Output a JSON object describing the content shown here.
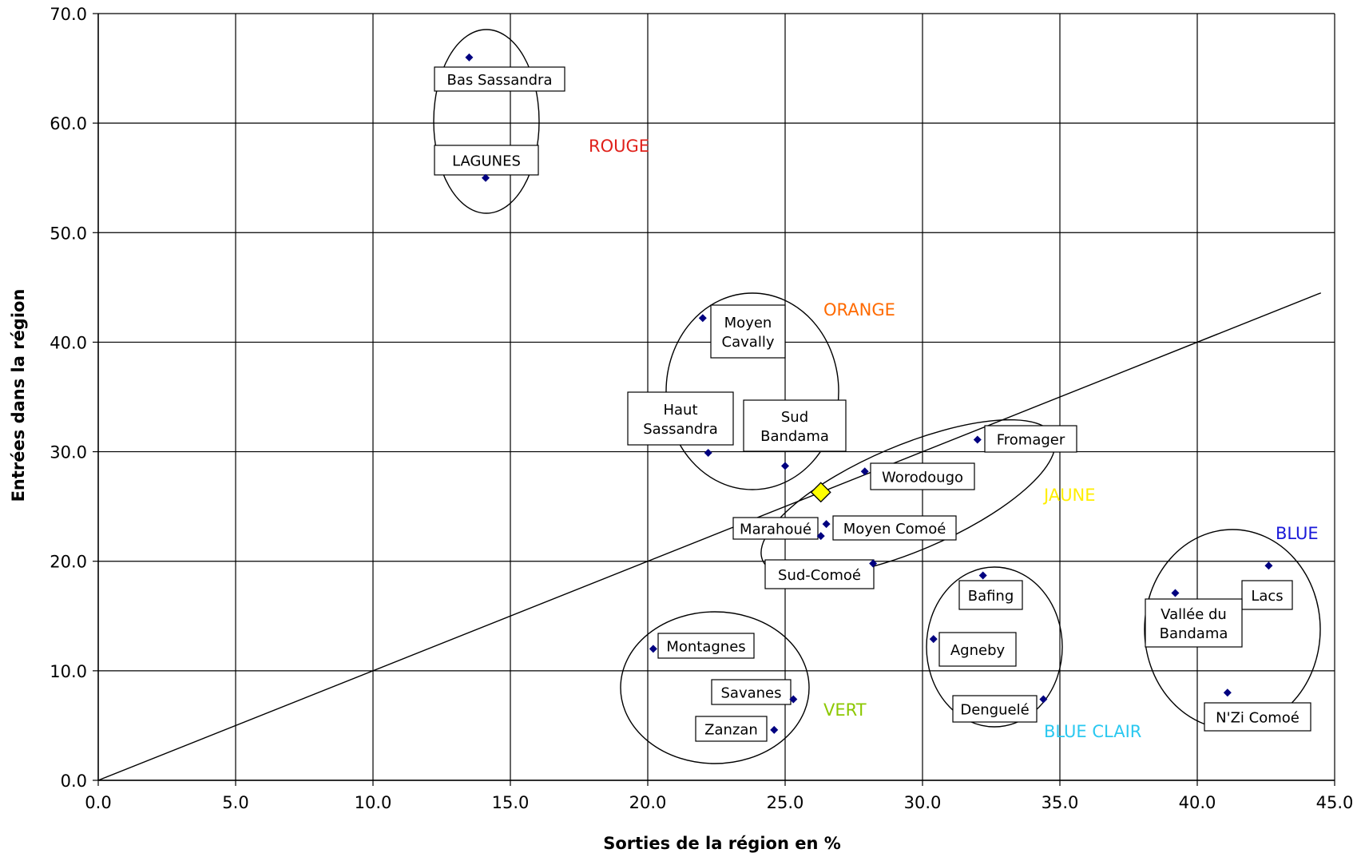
{
  "chart_data": {
    "type": "scatter",
    "xlabel": "Sorties de la région en %",
    "ylabel": "Entrées dans la région",
    "xlim": [
      0,
      45
    ],
    "ylim": [
      0,
      70
    ],
    "x_ticks": [
      "0.0",
      "5.0",
      "10.0",
      "15.0",
      "20.0",
      "25.0",
      "30.0",
      "35.0",
      "40.0",
      "45.0"
    ],
    "y_ticks": [
      "0.0",
      "10.0",
      "20.0",
      "30.0",
      "40.0",
      "50.0",
      "60.0",
      "70.0"
    ],
    "grid": true,
    "marker_color": "#000080",
    "reference_line": {
      "x": [
        0,
        44.5
      ],
      "y": [
        0,
        44.5
      ]
    },
    "highlight_point": {
      "x": 26.3,
      "y": 26.3,
      "color": "#FFFF00"
    },
    "points": [
      {
        "name": "Bas Sassandra",
        "x": 13.5,
        "y": 66.0
      },
      {
        "name": "LAGUNES",
        "x": 14.1,
        "y": 55.0
      },
      {
        "name": "Moyen\nCavally",
        "x": 22.0,
        "y": 42.2
      },
      {
        "name": "Haut\nSassandra",
        "x": 22.2,
        "y": 29.9
      },
      {
        "name": "Sud\nBandama",
        "x": 25.0,
        "y": 28.7
      },
      {
        "name": "Fromager",
        "x": 32.0,
        "y": 31.1
      },
      {
        "name": "Worodougo",
        "x": 27.9,
        "y": 28.2
      },
      {
        "name": "Marahoué",
        "x": 26.3,
        "y": 22.3
      },
      {
        "name": "Moyen Comoé",
        "x": 26.5,
        "y": 23.4
      },
      {
        "name": "Sud-Comoé",
        "x": 28.2,
        "y": 19.8
      },
      {
        "name": "Bafing",
        "x": 32.2,
        "y": 18.7
      },
      {
        "name": "Agneby",
        "x": 30.4,
        "y": 12.9
      },
      {
        "name": "Denguelé",
        "x": 34.4,
        "y": 7.4
      },
      {
        "name": "Montagnes",
        "x": 20.2,
        "y": 12.0
      },
      {
        "name": "Savanes",
        "x": 25.3,
        "y": 7.4
      },
      {
        "name": "Zanzan",
        "x": 24.6,
        "y": 4.6
      },
      {
        "name": "Lacs",
        "x": 42.6,
        "y": 19.6
      },
      {
        "name": "Vallée du\nBandama",
        "x": 39.2,
        "y": 17.1
      },
      {
        "name": "N'Zi Comoé",
        "x": 41.1,
        "y": 8.0
      }
    ],
    "groups": [
      {
        "name": "ROUGE",
        "color": "#E0201A"
      },
      {
        "name": "ORANGE",
        "color": "#FF6A00"
      },
      {
        "name": "JAUNE",
        "color": "#FFEE00"
      },
      {
        "name": "BLUE",
        "color": "#1A1AD8"
      },
      {
        "name": "VERT",
        "color": "#8CC800"
      },
      {
        "name": "BLUE CLAIR",
        "color": "#2AC8F0"
      }
    ]
  }
}
